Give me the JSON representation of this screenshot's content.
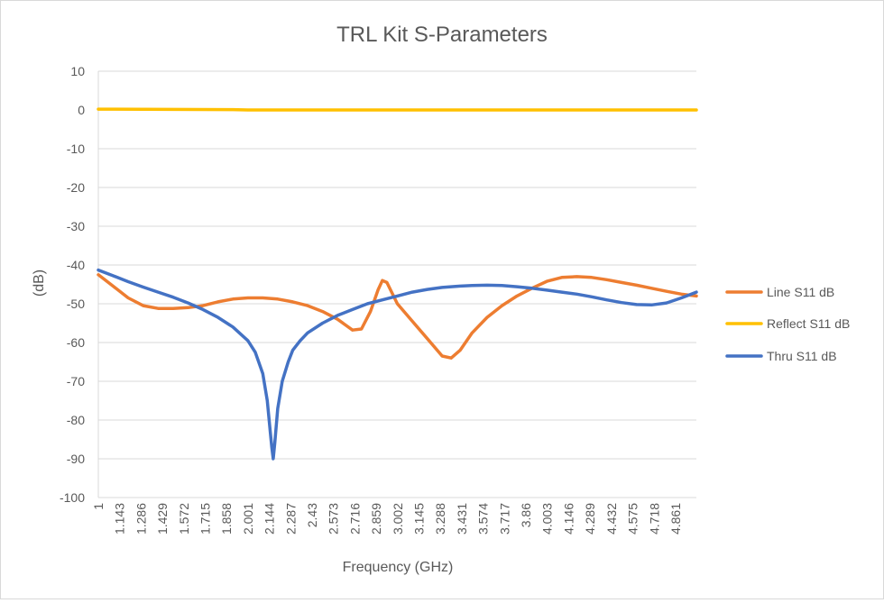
{
  "chart_data": {
    "type": "line",
    "title": "TRL Kit S-Parameters",
    "xlabel": "Frequency (GHz)",
    "ylabel": "(dB)",
    "xlim": [
      1,
      5
    ],
    "ylim": [
      -100,
      10
    ],
    "y_ticks": [
      "10",
      "0",
      "-10",
      "-20",
      "-30",
      "-40",
      "-50",
      "-60",
      "-70",
      "-80",
      "-90",
      "-100"
    ],
    "x_ticks": [
      "1",
      "1.143",
      "1.286",
      "1.429",
      "1.572",
      "1.715",
      "1.858",
      "2.001",
      "2.144",
      "2.287",
      "2.43",
      "2.573",
      "2.716",
      "2.859",
      "3.002",
      "3.145",
      "3.288",
      "3.431",
      "3.574",
      "3.717",
      "3.86",
      "4.003",
      "4.146",
      "4.289",
      "4.432",
      "4.575",
      "4.718",
      "4.861"
    ],
    "grid": true,
    "legend_position": "right",
    "series": [
      {
        "name": "Line S11 dB",
        "color": "#ED7D31",
        "points": [
          [
            1.0,
            -42.5
          ],
          [
            1.1,
            -45.5
          ],
          [
            1.2,
            -48.5
          ],
          [
            1.3,
            -50.5
          ],
          [
            1.4,
            -51.2
          ],
          [
            1.5,
            -51.2
          ],
          [
            1.6,
            -51.0
          ],
          [
            1.7,
            -50.5
          ],
          [
            1.8,
            -49.5
          ],
          [
            1.9,
            -48.8
          ],
          [
            2.0,
            -48.5
          ],
          [
            2.1,
            -48.5
          ],
          [
            2.2,
            -48.8
          ],
          [
            2.3,
            -49.5
          ],
          [
            2.4,
            -50.5
          ],
          [
            2.5,
            -52.0
          ],
          [
            2.6,
            -54.0
          ],
          [
            2.7,
            -56.8
          ],
          [
            2.76,
            -56.5
          ],
          [
            2.82,
            -52.0
          ],
          [
            2.87,
            -46.5
          ],
          [
            2.9,
            -44.0
          ],
          [
            2.93,
            -44.5
          ],
          [
            3.0,
            -50.0
          ],
          [
            3.1,
            -54.5
          ],
          [
            3.2,
            -59.0
          ],
          [
            3.3,
            -63.5
          ],
          [
            3.36,
            -64.0
          ],
          [
            3.42,
            -62.0
          ],
          [
            3.5,
            -57.5
          ],
          [
            3.6,
            -53.5
          ],
          [
            3.7,
            -50.5
          ],
          [
            3.8,
            -48.0
          ],
          [
            3.9,
            -46.0
          ],
          [
            4.0,
            -44.2
          ],
          [
            4.1,
            -43.2
          ],
          [
            4.2,
            -43.0
          ],
          [
            4.3,
            -43.2
          ],
          [
            4.4,
            -43.8
          ],
          [
            4.5,
            -44.5
          ],
          [
            4.6,
            -45.2
          ],
          [
            4.7,
            -46.0
          ],
          [
            4.8,
            -46.8
          ],
          [
            4.9,
            -47.5
          ],
          [
            5.0,
            -48.0
          ]
        ]
      },
      {
        "name": "Reflect S11 dB",
        "color": "#FFC000",
        "points": [
          [
            1.0,
            0.2
          ],
          [
            1.9,
            0.1
          ],
          [
            2.0,
            0.0
          ],
          [
            5.0,
            0.0
          ]
        ]
      },
      {
        "name": "Thru S11 dB",
        "color": "#4472C4",
        "points": [
          [
            1.0,
            -41.3
          ],
          [
            1.1,
            -42.8
          ],
          [
            1.2,
            -44.3
          ],
          [
            1.3,
            -45.7
          ],
          [
            1.4,
            -47.0
          ],
          [
            1.5,
            -48.3
          ],
          [
            1.6,
            -49.8
          ],
          [
            1.7,
            -51.5
          ],
          [
            1.8,
            -53.5
          ],
          [
            1.9,
            -56.0
          ],
          [
            2.0,
            -59.5
          ],
          [
            2.05,
            -62.5
          ],
          [
            2.1,
            -68.0
          ],
          [
            2.13,
            -75.0
          ],
          [
            2.15,
            -83.0
          ],
          [
            2.16,
            -87.0
          ],
          [
            2.17,
            -90.0
          ],
          [
            2.18,
            -86.0
          ],
          [
            2.2,
            -77.0
          ],
          [
            2.23,
            -70.0
          ],
          [
            2.27,
            -65.0
          ],
          [
            2.3,
            -62.0
          ],
          [
            2.35,
            -59.5
          ],
          [
            2.4,
            -57.5
          ],
          [
            2.5,
            -55.0
          ],
          [
            2.6,
            -53.0
          ],
          [
            2.7,
            -51.5
          ],
          [
            2.8,
            -50.0
          ],
          [
            2.9,
            -49.0
          ],
          [
            3.0,
            -48.0
          ],
          [
            3.1,
            -47.0
          ],
          [
            3.2,
            -46.3
          ],
          [
            3.3,
            -45.8
          ],
          [
            3.4,
            -45.5
          ],
          [
            3.5,
            -45.3
          ],
          [
            3.6,
            -45.2
          ],
          [
            3.7,
            -45.3
          ],
          [
            3.8,
            -45.6
          ],
          [
            3.9,
            -46.0
          ],
          [
            4.0,
            -46.5
          ],
          [
            4.1,
            -47.0
          ],
          [
            4.2,
            -47.5
          ],
          [
            4.3,
            -48.2
          ],
          [
            4.4,
            -49.0
          ],
          [
            4.5,
            -49.7
          ],
          [
            4.6,
            -50.2
          ],
          [
            4.7,
            -50.3
          ],
          [
            4.8,
            -49.8
          ],
          [
            4.9,
            -48.5
          ],
          [
            5.0,
            -47.0
          ]
        ]
      }
    ]
  }
}
